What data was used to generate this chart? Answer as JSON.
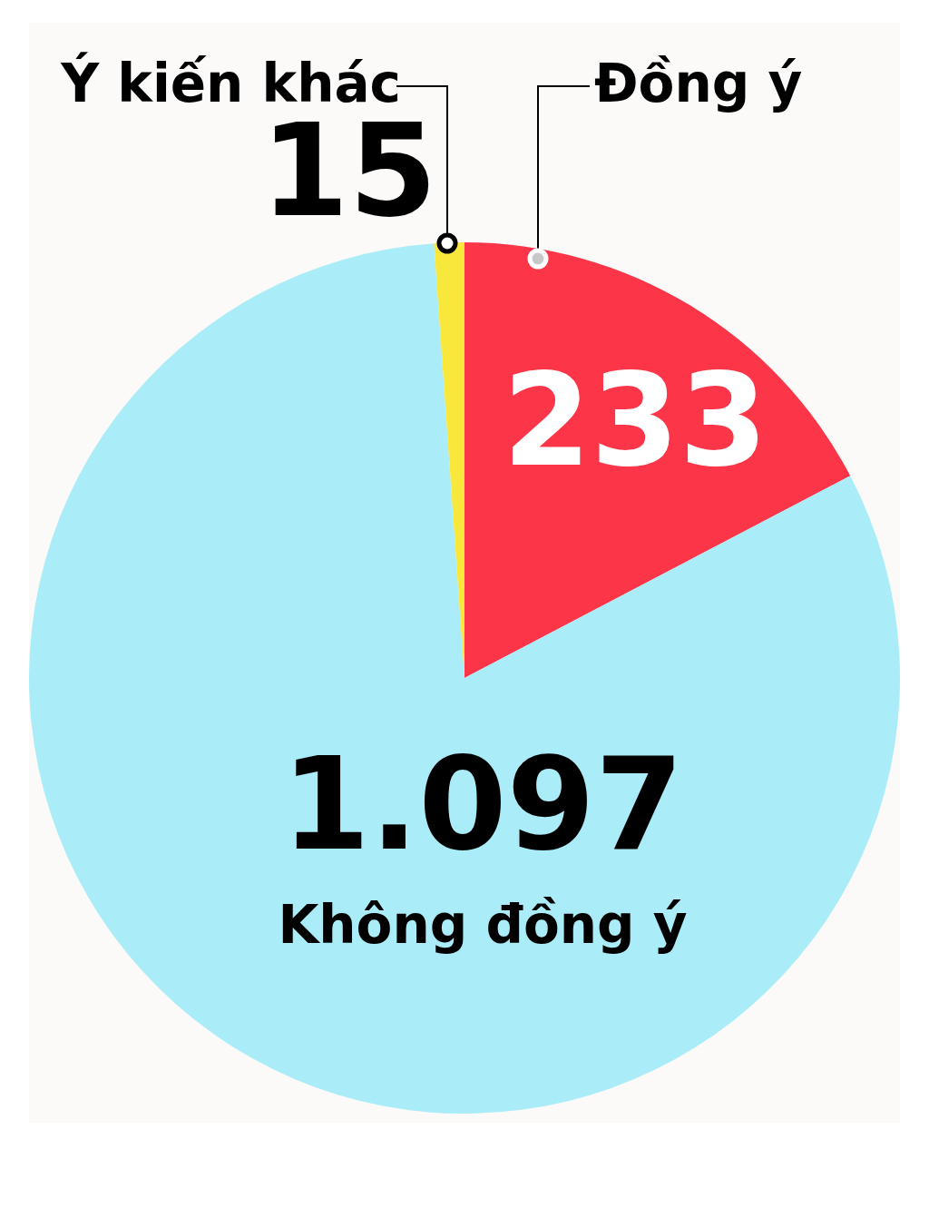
{
  "chart_data": {
    "type": "pie",
    "categories": [
      "Đồng ý",
      "Không đồng ý",
      "Ý kiến khác"
    ],
    "values": [
      233,
      1097,
      15
    ],
    "colors": [
      "#fc3549",
      "#aaedf8",
      "#f8e83c"
    ],
    "value_labels": [
      "233",
      "1.097",
      "15"
    ],
    "legend": false
  }
}
